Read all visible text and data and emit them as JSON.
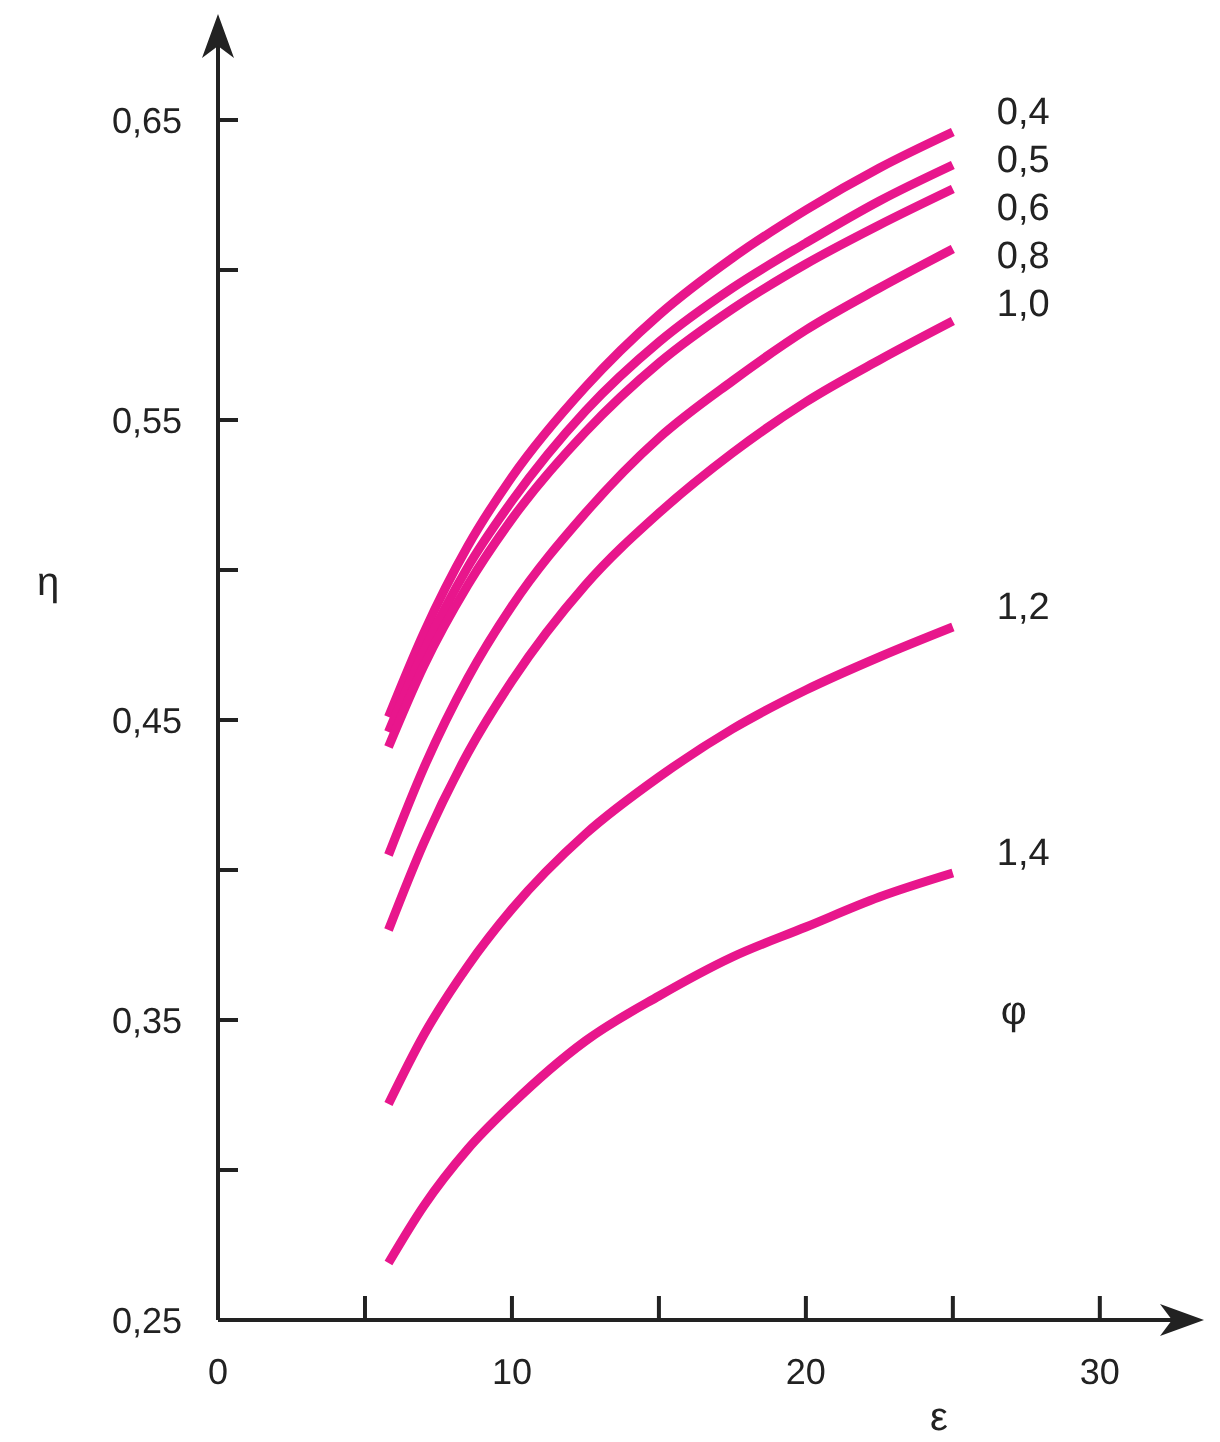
{
  "chart_data": {
    "type": "line",
    "xlabel": "ε",
    "ylabel": "η",
    "legend_title": "φ",
    "marker": "none",
    "line_style": "solid",
    "grid": false,
    "x": [
      5.8,
      7,
      8.5,
      10,
      12.5,
      15,
      17.5,
      20,
      22.5,
      25
    ],
    "xlim": [
      0,
      33
    ],
    "xticks": [
      0,
      {
        "value": 5,
        "label": null
      },
      10,
      {
        "value": 15,
        "label": null
      },
      20,
      {
        "value": 25,
        "label": null
      },
      30
    ],
    "ylim": [
      0.25,
      0.68
    ],
    "yticks": [
      {
        "value": 0.25,
        "label": "0,25"
      },
      {
        "value": 0.3,
        "label": null
      },
      {
        "value": 0.35,
        "label": "0,35"
      },
      {
        "value": 0.4,
        "label": null
      },
      {
        "value": 0.45,
        "label": "0,45"
      },
      {
        "value": 0.5,
        "label": null
      },
      {
        "value": 0.55,
        "label": "0,55"
      },
      {
        "value": 0.6,
        "label": null
      },
      {
        "value": 0.65,
        "label": "0,65"
      }
    ],
    "series": [
      {
        "name": "0,4",
        "color": "#e8168c",
        "values": [
          0.451,
          0.479,
          0.508,
          0.531,
          0.561,
          0.585,
          0.604,
          0.62,
          0.634,
          0.646
        ]
      },
      {
        "name": "0,5",
        "color": "#e8168c",
        "values": [
          0.446,
          0.473,
          0.501,
          0.523,
          0.553,
          0.576,
          0.594,
          0.609,
          0.623,
          0.635
        ]
      },
      {
        "name": "0,6",
        "color": "#e8168c",
        "values": [
          0.441,
          0.468,
          0.495,
          0.517,
          0.546,
          0.569,
          0.587,
          0.602,
          0.615,
          0.627
        ]
      },
      {
        "name": "0,8",
        "color": "#e8168c",
        "values": [
          0.405,
          0.434,
          0.464,
          0.488,
          0.519,
          0.544,
          0.563,
          0.58,
          0.594,
          0.607
        ]
      },
      {
        "name": "1,0",
        "color": "#e8168c",
        "values": [
          0.38,
          0.409,
          0.439,
          0.463,
          0.495,
          0.519,
          0.539,
          0.556,
          0.57,
          0.583
        ]
      },
      {
        "name": "1,2",
        "color": "#e8168c",
        "values": [
          0.322,
          0.345,
          0.368,
          0.387,
          0.412,
          0.431,
          0.447,
          0.46,
          0.471,
          0.481
        ]
      },
      {
        "name": "1,4",
        "color": "#e8168c",
        "values": [
          0.269,
          0.288,
          0.307,
          0.322,
          0.343,
          0.358,
          0.371,
          0.381,
          0.391,
          0.399
        ]
      }
    ]
  }
}
